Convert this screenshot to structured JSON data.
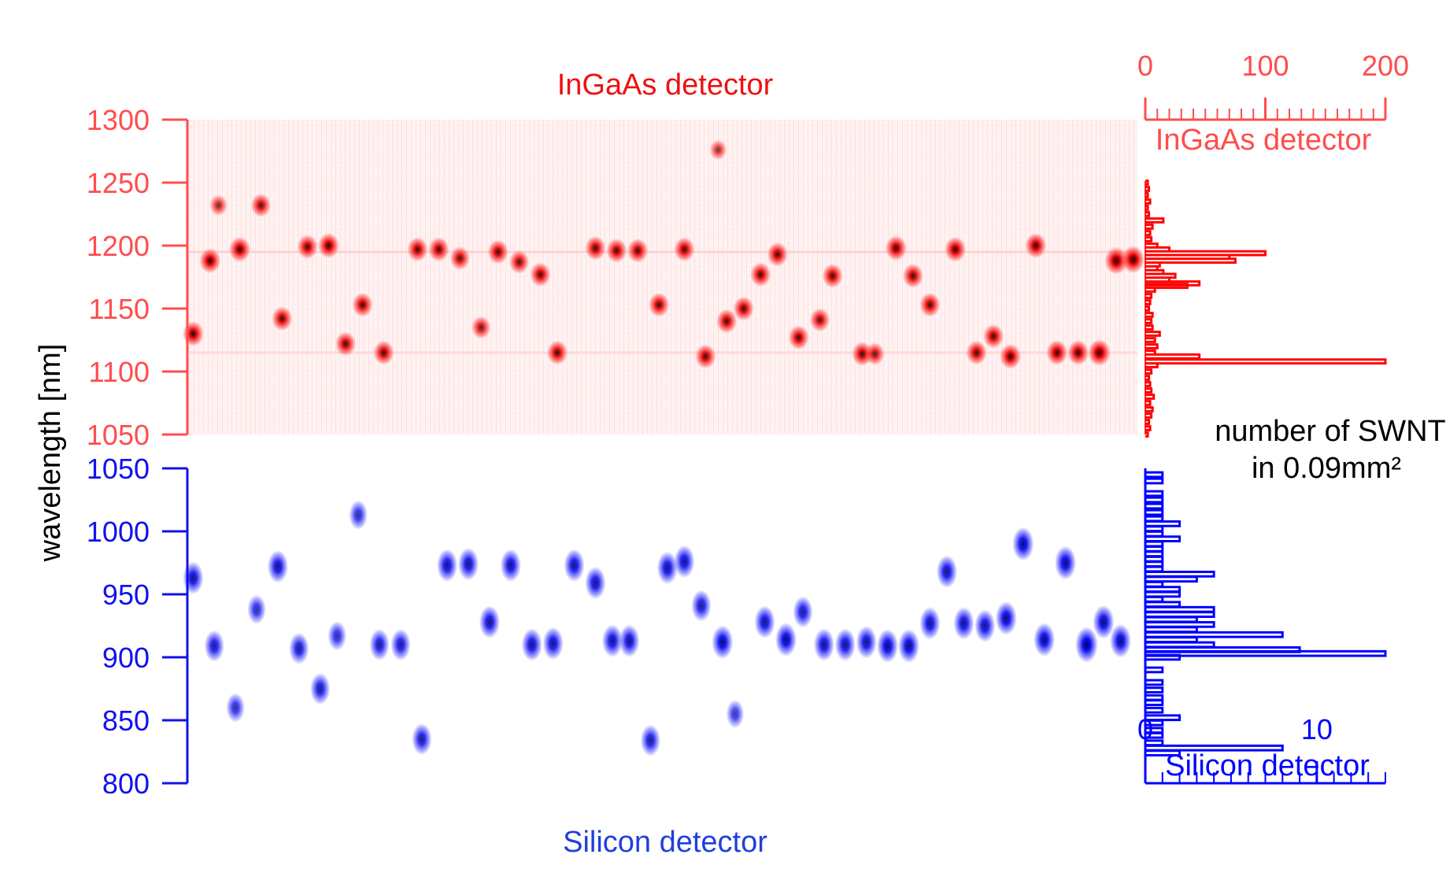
{
  "chart_data": [
    {
      "id": "ingaas-map",
      "type": "heatmap",
      "title": "InGaAs detector",
      "color": "#ee1111",
      "axis_color": "#ff4d4d",
      "ylim": [
        1050,
        1300
      ],
      "yticks": [
        1050,
        1100,
        1150,
        1200,
        1250,
        1300
      ],
      "ylabel": "wavelength [nm]",
      "spots": [
        [
          0.5,
          1130,
          1
        ],
        [
          2.5,
          1188,
          1
        ],
        [
          3.5,
          1232,
          0.5
        ],
        [
          6,
          1197,
          1
        ],
        [
          8.5,
          1232,
          0.8
        ],
        [
          11,
          1142,
          0.9
        ],
        [
          14,
          1199,
          0.9
        ],
        [
          16.5,
          1200,
          1
        ],
        [
          18.5,
          1122,
          0.9
        ],
        [
          20.5,
          1153,
          0.9
        ],
        [
          23,
          1115,
          0.9
        ],
        [
          27,
          1197,
          0.9
        ],
        [
          29.5,
          1197,
          0.9
        ],
        [
          32,
          1190,
          0.8
        ],
        [
          34.5,
          1135,
          0.7
        ],
        [
          36.5,
          1195,
          0.9
        ],
        [
          39,
          1187,
          0.8
        ],
        [
          41.5,
          1177,
          0.9
        ],
        [
          43.5,
          1115,
          0.9
        ],
        [
          48,
          1198,
          0.9
        ],
        [
          50.5,
          1196,
          0.9
        ],
        [
          53,
          1196,
          0.9
        ],
        [
          55.5,
          1153,
          0.9
        ],
        [
          58.5,
          1197,
          0.9
        ],
        [
          61,
          1112,
          0.9
        ],
        [
          62.5,
          1276,
          0.4
        ],
        [
          63.5,
          1140,
          0.9
        ],
        [
          65.5,
          1150,
          0.9
        ],
        [
          67.5,
          1177,
          0.9
        ],
        [
          69.5,
          1193,
          0.9
        ],
        [
          72,
          1127,
          0.9
        ],
        [
          74.5,
          1141,
          0.8
        ],
        [
          76,
          1176,
          0.9
        ],
        [
          79.5,
          1114,
          0.9
        ],
        [
          81,
          1114,
          0.7
        ],
        [
          83.5,
          1198,
          1
        ],
        [
          85.5,
          1176,
          0.9
        ],
        [
          87.5,
          1153,
          0.9
        ],
        [
          90.5,
          1197,
          1
        ],
        [
          93,
          1115,
          0.9
        ],
        [
          95,
          1128,
          0.9
        ],
        [
          97,
          1112,
          1
        ],
        [
          100,
          1200,
          1
        ],
        [
          102.5,
          1115,
          1
        ],
        [
          105,
          1115,
          1
        ],
        [
          107.5,
          1115,
          1.2
        ],
        [
          109.5,
          1188,
          1.3
        ],
        [
          111.5,
          1189,
          1.3
        ]
      ]
    },
    {
      "id": "silicon-map",
      "type": "heatmap",
      "title": "Silicon detector",
      "color": "#1111ee",
      "axis_color": "#1111ee",
      "ylim": [
        800,
        1050
      ],
      "yticks": [
        800,
        850,
        900,
        950,
        1000,
        1050
      ],
      "spots": [
        [
          0.5,
          963,
          0.9
        ],
        [
          3,
          909,
          0.8
        ],
        [
          5.5,
          860,
          0.6
        ],
        [
          8,
          938,
          0.6
        ],
        [
          10.5,
          972,
          0.9
        ],
        [
          13,
          907,
          0.8
        ],
        [
          15.5,
          875,
          0.8
        ],
        [
          17.5,
          917,
          0.6
        ],
        [
          20,
          1013,
          0.6
        ],
        [
          22.5,
          910,
          0.8
        ],
        [
          25,
          910,
          0.8
        ],
        [
          27.5,
          835,
          0.8
        ],
        [
          30.5,
          973,
          0.9
        ],
        [
          33,
          974,
          0.9
        ],
        [
          35.5,
          928,
          0.9
        ],
        [
          38,
          973,
          0.9
        ],
        [
          40.5,
          910,
          0.9
        ],
        [
          43,
          911,
          0.9
        ],
        [
          45.5,
          973,
          0.9
        ],
        [
          48,
          959,
          0.9
        ],
        [
          50,
          913,
          0.9
        ],
        [
          52,
          913,
          0.9
        ],
        [
          54.5,
          834,
          0.8
        ],
        [
          56.5,
          971,
          0.9
        ],
        [
          58.5,
          976,
          0.9
        ],
        [
          60.5,
          941,
          0.8
        ],
        [
          63,
          912,
          1
        ],
        [
          64.5,
          855,
          0.5
        ],
        [
          68,
          928,
          0.9
        ],
        [
          70.5,
          914,
          1
        ],
        [
          72.5,
          936,
          0.8
        ],
        [
          75,
          910,
          0.9
        ],
        [
          77.5,
          910,
          0.9
        ],
        [
          80,
          912,
          0.9
        ],
        [
          82.5,
          909,
          1
        ],
        [
          85,
          909,
          1
        ],
        [
          87.5,
          927,
          0.9
        ],
        [
          89.5,
          968,
          0.9
        ],
        [
          91.5,
          927,
          0.9
        ],
        [
          94,
          925,
          0.9
        ],
        [
          96.5,
          931,
          1
        ],
        [
          98.5,
          990,
          1
        ],
        [
          101,
          914,
          1
        ],
        [
          103.5,
          975,
          1
        ],
        [
          106,
          910,
          1.2
        ],
        [
          108,
          928,
          1
        ],
        [
          110,
          913,
          1
        ]
      ]
    },
    {
      "id": "ingaas-histogram",
      "type": "line",
      "label": "InGaAs detector",
      "color": "#ff0000",
      "axis_color": "#ff4d4d",
      "xlim": [
        0,
        200
      ],
      "xticks": [
        0,
        100,
        200
      ],
      "bins": [
        [
          1050,
          2
        ],
        [
          1055,
          4
        ],
        [
          1060,
          3
        ],
        [
          1065,
          5
        ],
        [
          1070,
          6
        ],
        [
          1075,
          4
        ],
        [
          1080,
          7
        ],
        [
          1085,
          5
        ],
        [
          1090,
          4
        ],
        [
          1095,
          3
        ],
        [
          1100,
          5
        ],
        [
          1105,
          10
        ],
        [
          1108,
          200
        ],
        [
          1112,
          45
        ],
        [
          1115,
          8
        ],
        [
          1120,
          10
        ],
        [
          1125,
          8
        ],
        [
          1130,
          12
        ],
        [
          1135,
          6
        ],
        [
          1140,
          5
        ],
        [
          1145,
          6
        ],
        [
          1150,
          3
        ],
        [
          1155,
          4
        ],
        [
          1160,
          5
        ],
        [
          1165,
          8
        ],
        [
          1168,
          35
        ],
        [
          1170,
          45
        ],
        [
          1173,
          20
        ],
        [
          1176,
          25
        ],
        [
          1179,
          15
        ],
        [
          1182,
          10
        ],
        [
          1185,
          12
        ],
        [
          1188,
          75
        ],
        [
          1191,
          70
        ],
        [
          1194,
          100
        ],
        [
          1197,
          20
        ],
        [
          1200,
          10
        ],
        [
          1205,
          5
        ],
        [
          1210,
          4
        ],
        [
          1215,
          6
        ],
        [
          1220,
          15
        ],
        [
          1225,
          3
        ],
        [
          1230,
          2
        ],
        [
          1235,
          4
        ],
        [
          1240,
          2
        ],
        [
          1245,
          3
        ],
        [
          1250,
          2
        ]
      ]
    },
    {
      "id": "silicon-histogram",
      "type": "line",
      "label": "Silicon detector",
      "color": "#0000ff",
      "axis_color": "#0000ff",
      "xlim": [
        0,
        14
      ],
      "xticks": [
        0,
        10
      ],
      "bins": [
        [
          824,
          2
        ],
        [
          828,
          8
        ],
        [
          832,
          1
        ],
        [
          838,
          1
        ],
        [
          842,
          1
        ],
        [
          848,
          1
        ],
        [
          852,
          2
        ],
        [
          858,
          1
        ],
        [
          864,
          1
        ],
        [
          868,
          1
        ],
        [
          874,
          1
        ],
        [
          880,
          1
        ],
        [
          890,
          1
        ],
        [
          900,
          2
        ],
        [
          903,
          14
        ],
        [
          906,
          9
        ],
        [
          910,
          4
        ],
        [
          914,
          3
        ],
        [
          918,
          8
        ],
        [
          922,
          3
        ],
        [
          926,
          4
        ],
        [
          930,
          3
        ],
        [
          934,
          4
        ],
        [
          938,
          4
        ],
        [
          942,
          2
        ],
        [
          946,
          1
        ],
        [
          950,
          2
        ],
        [
          954,
          2
        ],
        [
          958,
          1
        ],
        [
          962,
          3
        ],
        [
          966,
          4
        ],
        [
          970,
          1
        ],
        [
          974,
          1
        ],
        [
          978,
          1
        ],
        [
          982,
          1
        ],
        [
          986,
          1
        ],
        [
          990,
          1
        ],
        [
          994,
          2
        ],
        [
          998,
          1
        ],
        [
          1002,
          1
        ],
        [
          1006,
          2
        ],
        [
          1010,
          1
        ],
        [
          1015,
          1
        ],
        [
          1020,
          1
        ],
        [
          1025,
          1
        ],
        [
          1030,
          1
        ],
        [
          1040,
          1
        ],
        [
          1045,
          1
        ]
      ]
    }
  ],
  "annotations": {
    "ingaas_title": "InGaAs detector",
    "silicon_title": "Silicon detector",
    "ylabel": "wavelength [nm]",
    "hist_ingaas_label": "InGaAs detector",
    "hist_silicon_label": "Silicon detector",
    "count_label_line1": "number of SWNT",
    "count_label_line2": "in 0.09mm²"
  }
}
